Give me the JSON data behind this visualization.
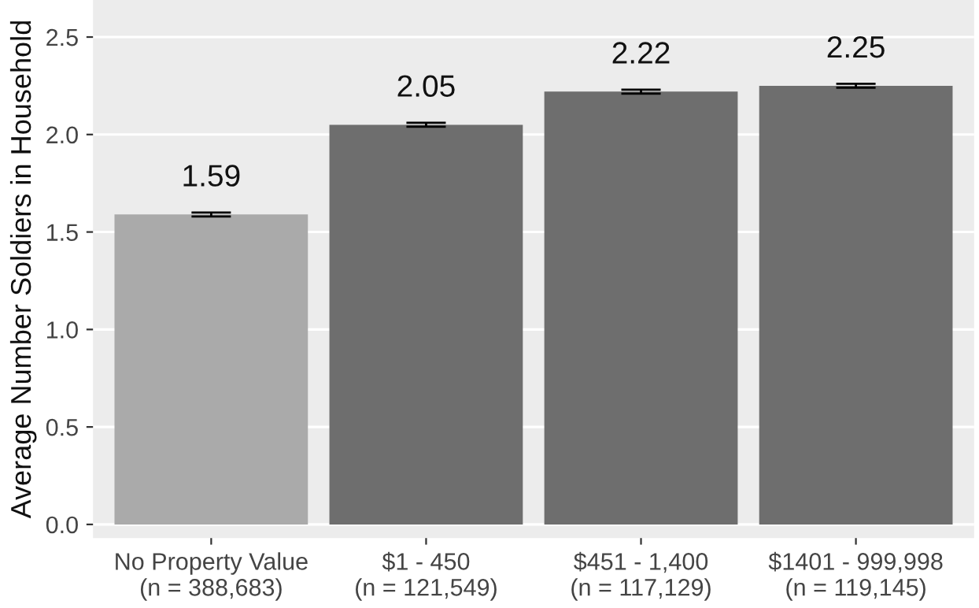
{
  "chart_data": {
    "type": "bar",
    "ylabel": "Average Number Soldiers in Household",
    "categories": [
      "No Property Value\n(n = 388,683)",
      "$1 - 450\n(n = 121,549)",
      "$451 - 1,400\n(n = 117,129)",
      "$1401 - 999,998\n(n = 119,145)"
    ],
    "values": [
      1.59,
      2.05,
      2.22,
      2.25
    ],
    "colors": [
      "#aaaaaa",
      "#6e6e6e",
      "#6e6e6e",
      "#6e6e6e"
    ],
    "errors": [
      0.01,
      0.01,
      0.01,
      0.01
    ],
    "data_labels": true,
    "ylim": [
      -0.07,
      2.69
    ],
    "yticks": [
      {
        "value": 0,
        "label": "0.0"
      },
      {
        "value": 0.5,
        "label": "0.5"
      },
      {
        "value": 1,
        "label": "1.0"
      },
      {
        "value": 1.5,
        "label": "1.5"
      },
      {
        "value": 2,
        "label": "2.0"
      },
      {
        "value": 2.5,
        "label": "2.5"
      }
    ],
    "grid": "y"
  }
}
